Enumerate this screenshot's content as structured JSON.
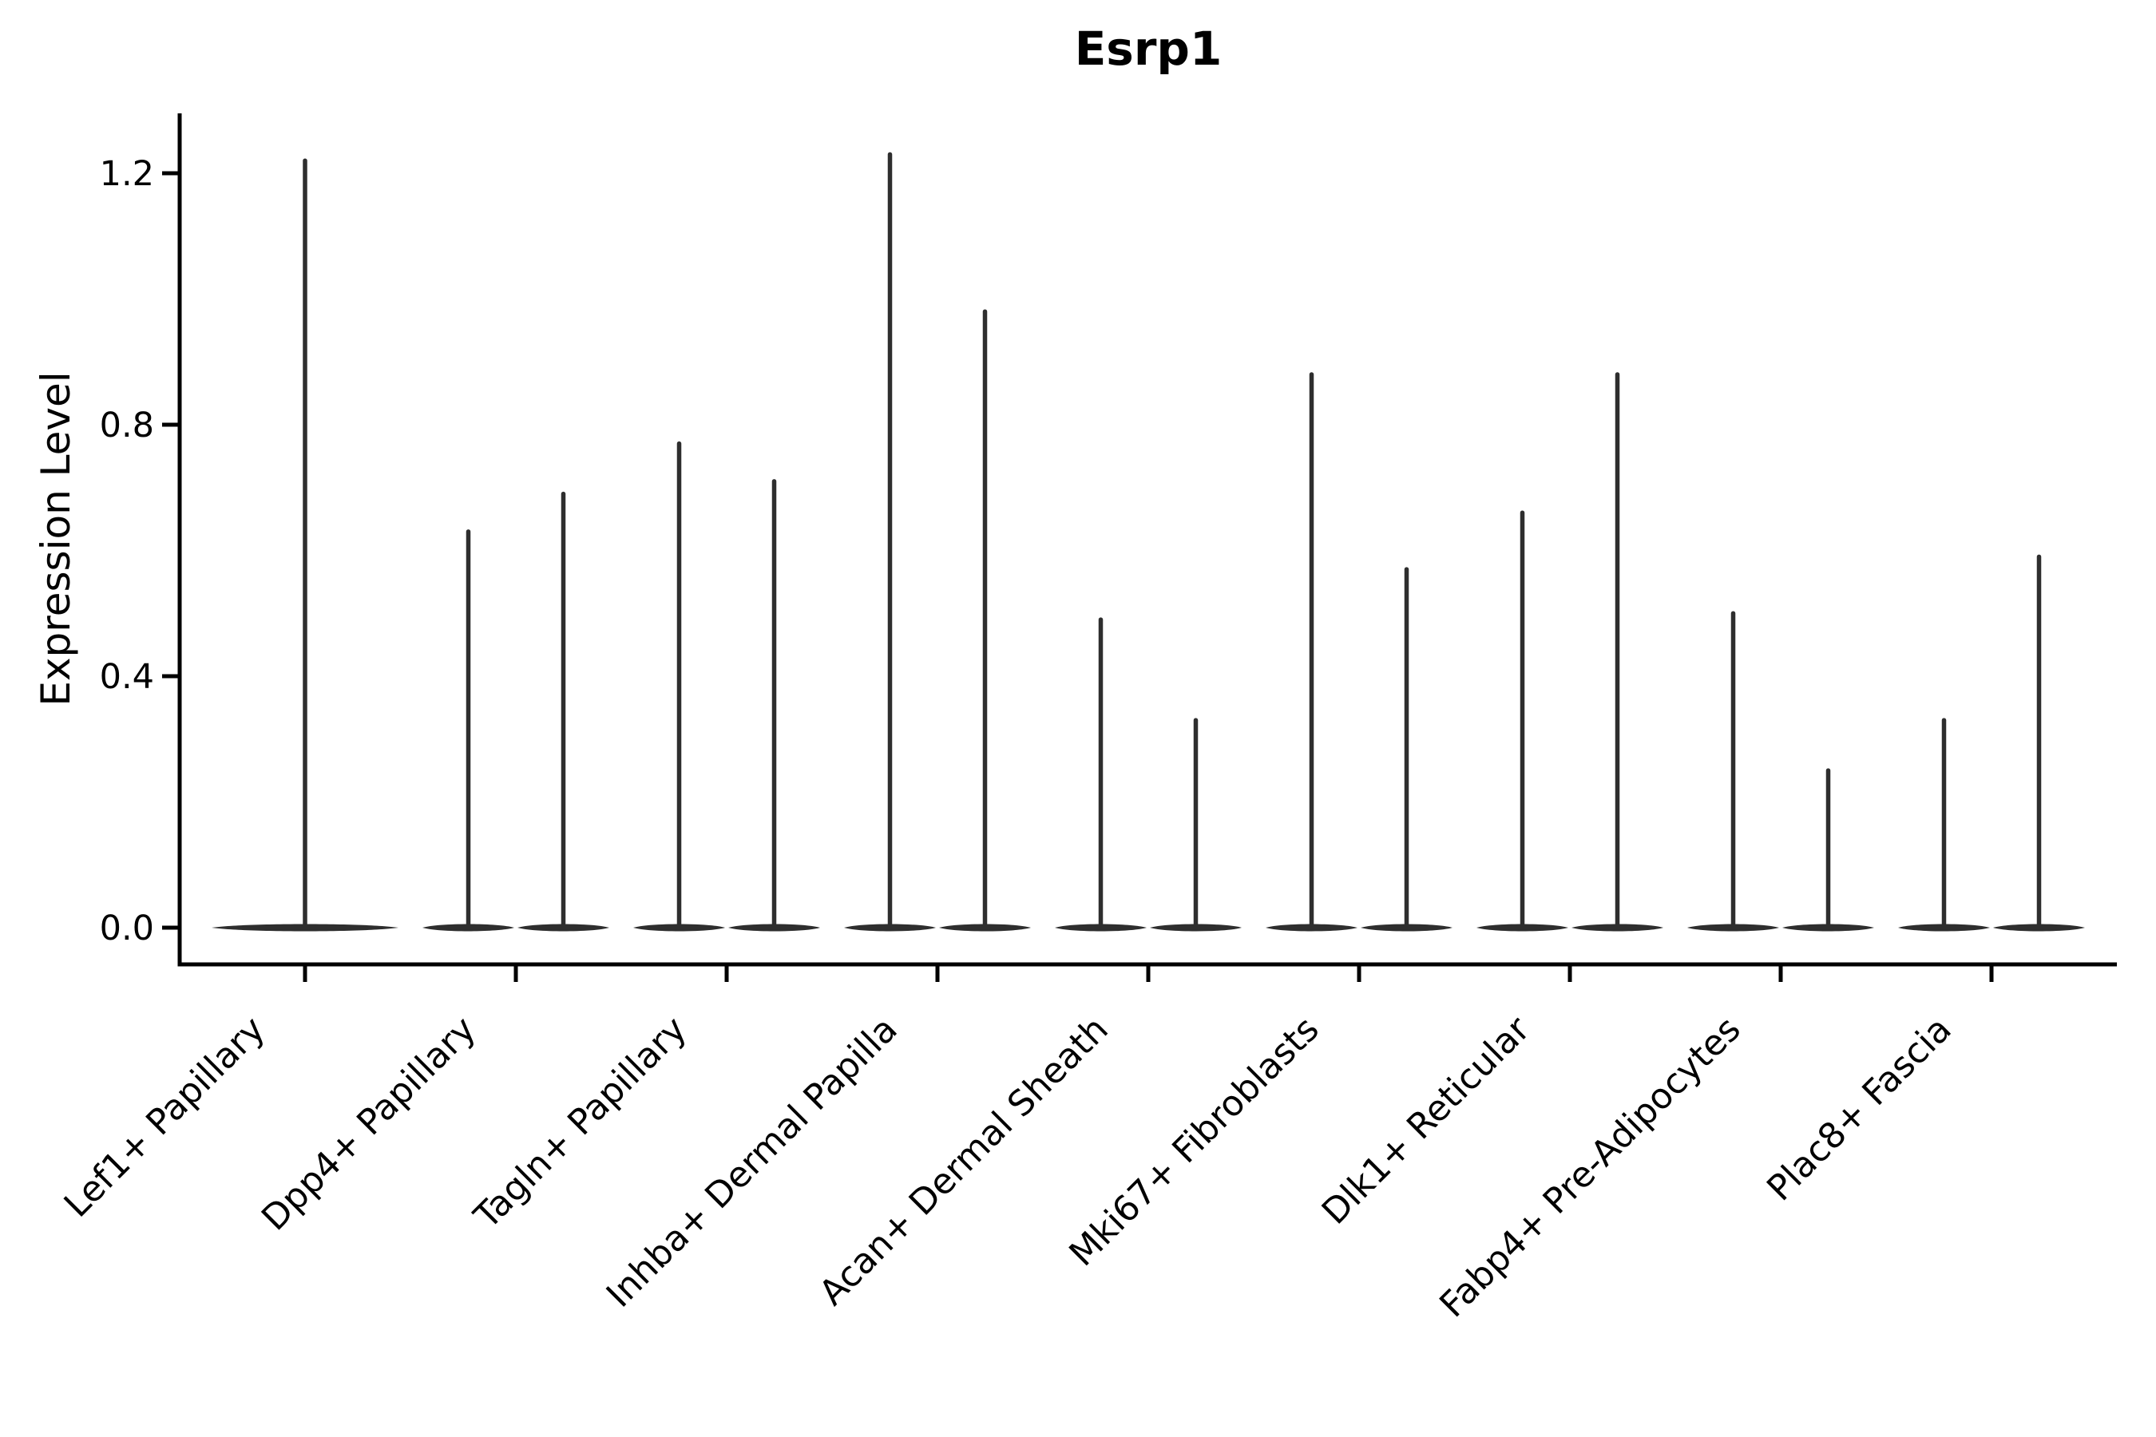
{
  "title": "Esrp1",
  "axes": {
    "y_label": "Expression Level",
    "y_ticks": [
      {
        "label": "0.0",
        "value": 0.0
      },
      {
        "label": "0.4",
        "value": 0.4
      },
      {
        "label": "0.8",
        "value": 0.8
      },
      {
        "label": "1.2",
        "value": 1.2
      }
    ]
  },
  "chart_data": {
    "type": "violin",
    "title": "Esrp1",
    "xlabel": "",
    "ylabel": "Expression Level",
    "ylim": [
      -0.06,
      1.3
    ],
    "y_tick_values": [
      0.0,
      0.4,
      0.8,
      1.2
    ],
    "grid": false,
    "legend_position": "none",
    "baseline_value": 0.0,
    "categories": [
      "Lef1+ Papillary",
      "Dpp4+ Papillary",
      "Tagln+ Papillary",
      "Inhba+ Dermal Papilla",
      "Acan+ Dermal Sheath",
      "Mki67+ Fibroblasts",
      "Dlk1+ Reticular",
      "Fabp4+ Pre-Adipocytes",
      "Plac8+ Fascia"
    ],
    "violins": [
      {
        "category": "Lef1+ Papillary",
        "maxima": [
          1.22
        ]
      },
      {
        "category": "Dpp4+ Papillary",
        "maxima": [
          0.63,
          0.69
        ]
      },
      {
        "category": "Tagln+ Papillary",
        "maxima": [
          0.77,
          0.71
        ]
      },
      {
        "category": "Inhba+ Dermal Papilla",
        "maxima": [
          1.23,
          0.98
        ]
      },
      {
        "category": "Acan+ Dermal Sheath",
        "maxima": [
          0.49,
          0.33
        ]
      },
      {
        "category": "Mki67+ Fibroblasts",
        "maxima": [
          0.88,
          0.57
        ]
      },
      {
        "category": "Dlk1+ Reticular",
        "maxima": [
          0.66,
          0.88
        ]
      },
      {
        "category": "Fabp4+ Pre-Adipocytes",
        "maxima": [
          0.5,
          0.25
        ]
      },
      {
        "category": "Plac8+ Fascia",
        "maxima": [
          0.33,
          0.59
        ]
      }
    ]
  },
  "style": {
    "violin_color": "#2e2e2e",
    "axis_color": "#000000",
    "background": "#ffffff"
  }
}
